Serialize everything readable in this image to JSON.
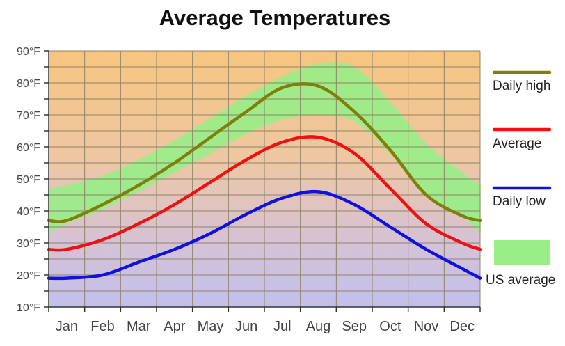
{
  "chart_data": {
    "type": "line",
    "title": "Average Temperatures",
    "categories": [
      "Jan",
      "Feb",
      "Mar",
      "Apr",
      "May",
      "Jun",
      "Jul",
      "Aug",
      "Sep",
      "Oct",
      "Nov",
      "Dec"
    ],
    "y_ticks": [
      10,
      20,
      30,
      40,
      50,
      60,
      70,
      80,
      90
    ],
    "y_tick_labels": [
      "10°F",
      "20°F",
      "30°F",
      "40°F",
      "50°F",
      "60°F",
      "70°F",
      "80°F",
      "90°F"
    ],
    "ylim": [
      10,
      90
    ],
    "ylabel": "",
    "xlabel": "",
    "grid": true,
    "legend_position": "right",
    "series": [
      {
        "name": "Daily high",
        "color": "#7f7f0e",
        "values": [
          37,
          42,
          48,
          55,
          63,
          71,
          78.5,
          79,
          71,
          59,
          45,
          38.5
        ],
        "end_values": [
          37,
          37
        ]
      },
      {
        "name": "Average",
        "color": "#ee1111",
        "values": [
          28,
          31,
          36,
          42,
          49,
          56,
          61.5,
          63,
          58,
          47,
          36,
          30
        ],
        "end_values": [
          28,
          28
        ]
      },
      {
        "name": "Daily low",
        "color": "#1111dd",
        "values": [
          19,
          20,
          24,
          28,
          33,
          39,
          44,
          46,
          42,
          35,
          28,
          22
        ],
        "end_values": [
          19,
          19
        ]
      }
    ],
    "band": {
      "name": "US average",
      "color": "#99ee88",
      "upper": [
        48,
        51,
        56,
        62,
        69,
        76,
        82,
        86,
        85,
        74,
        61,
        52
      ],
      "lower": [
        36,
        40.5,
        46,
        52,
        58,
        64,
        68.5,
        70,
        68,
        58,
        45,
        38.5
      ],
      "end_upper": [
        47,
        48
      ],
      "end_lower": [
        33,
        33
      ]
    }
  }
}
